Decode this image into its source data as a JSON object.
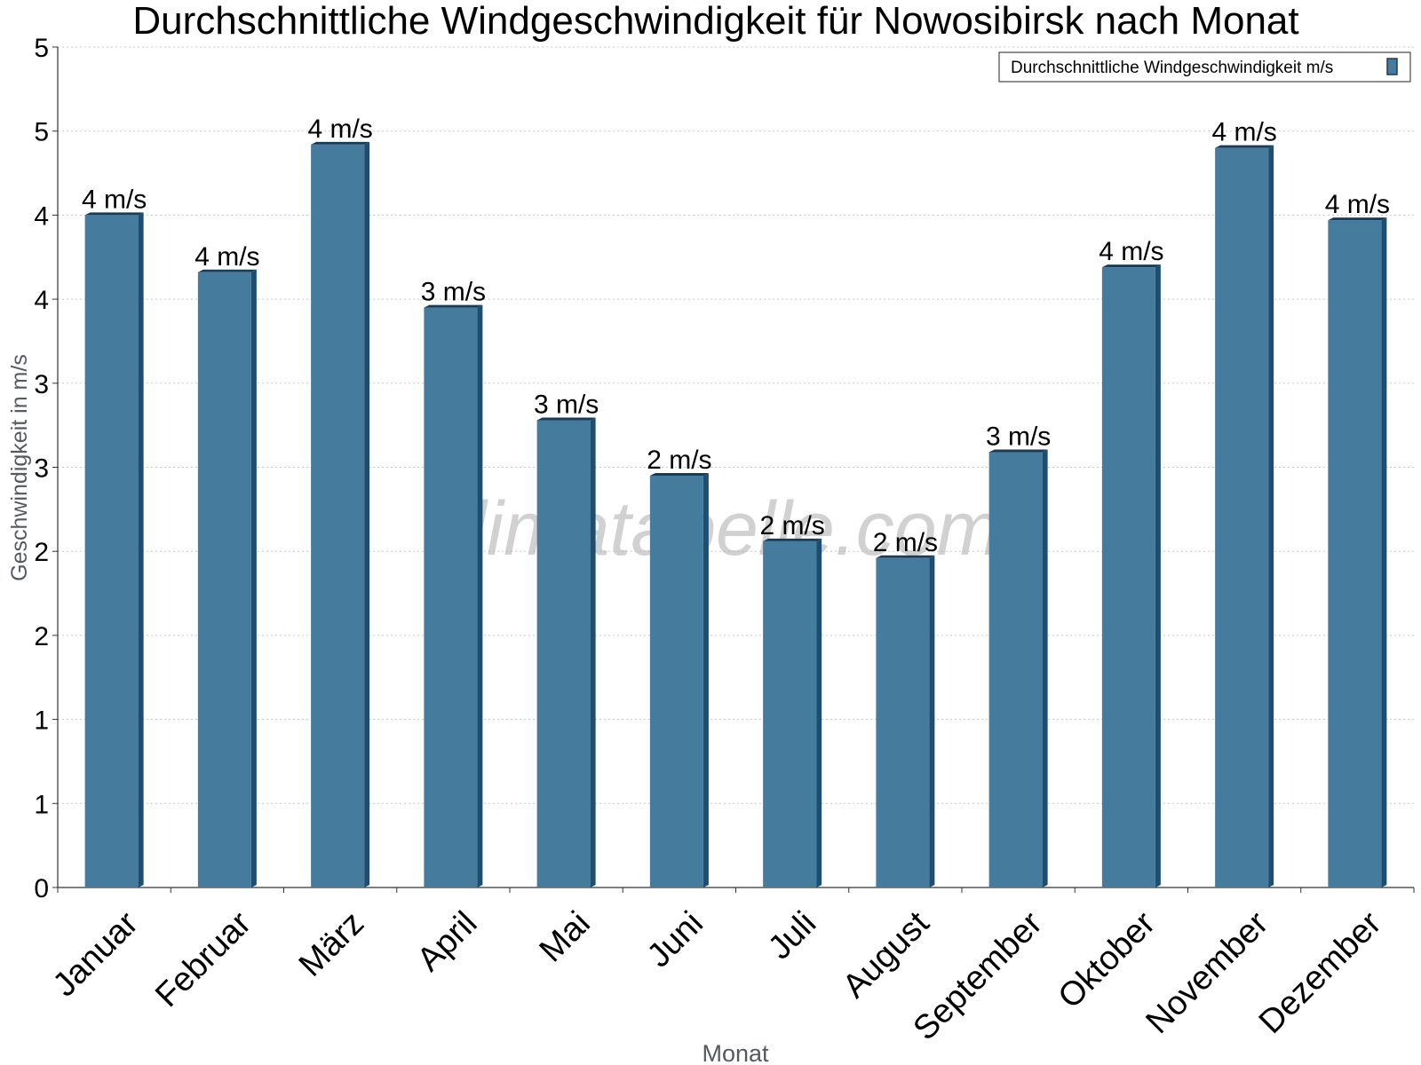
{
  "chart_data": {
    "type": "bar",
    "title": "Durchschnittliche Windgeschwindigkeit für Nowosibirsk nach Monat",
    "xlabel": "Monat",
    "ylabel": "Geschwindigkeit in m/s",
    "watermark": "klimatabelle.com",
    "legend": {
      "label": "Durchschnittliche Windgeschwindigkeit m/s",
      "position": "top-right"
    },
    "grid": true,
    "ylim": [
      0,
      5
    ],
    "y_tick_values": [
      0,
      0.5,
      1,
      1.5,
      2,
      2.5,
      3,
      3.5,
      4,
      4.5,
      5
    ],
    "y_tick_labels": [
      "0",
      "1",
      "1",
      "2",
      "2",
      "3",
      "3",
      "4",
      "4",
      "5",
      "5"
    ],
    "categories": [
      "Januar",
      "Februar",
      "März",
      "April",
      "Mai",
      "Juni",
      "Juli",
      "August",
      "September",
      "Oktober",
      "November",
      "Dezember"
    ],
    "series": [
      {
        "name": "Durchschnittliche Windgeschwindigkeit m/s",
        "color": "#457b9d",
        "values": [
          4.0,
          3.66,
          4.42,
          3.45,
          2.78,
          2.45,
          2.06,
          1.96,
          2.59,
          3.69,
          4.4,
          3.97
        ],
        "labels": [
          "4 m/s",
          "4 m/s",
          "4 m/s",
          "3 m/s",
          "3 m/s",
          "2 m/s",
          "2 m/s",
          "2 m/s",
          "3 m/s",
          "4 m/s",
          "4 m/s",
          "4 m/s"
        ]
      }
    ]
  }
}
